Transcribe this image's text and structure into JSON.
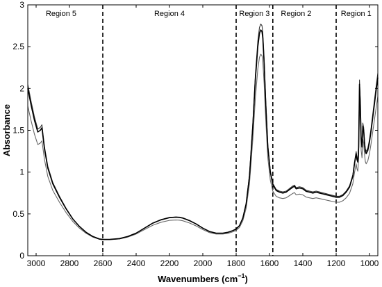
{
  "chart_data": {
    "type": "line",
    "xlabel": "Wavenumbers (cm",
    "xlabel_sup": "−1",
    "xlabel_close": ")",
    "ylabel": "Absorbance",
    "xlim": [
      3050,
      950
    ],
    "ylim": [
      0,
      3
    ],
    "x_reversed": true,
    "x_ticks": [
      3000,
      2800,
      2600,
      2400,
      2200,
      2000,
      1800,
      1600,
      1400,
      1200,
      1000
    ],
    "y_ticks": [
      0,
      0.5,
      1,
      1.5,
      2,
      2.5,
      3
    ],
    "y_tick_labels": [
      "0",
      "0.5",
      "1",
      "1.5",
      "2",
      "2.5",
      "3"
    ],
    "grid": false,
    "region_boundaries": [
      2600,
      1800,
      1580,
      1200
    ],
    "regions": [
      {
        "label": "Region 5",
        "x_center": 2850
      },
      {
        "label": "Region 4",
        "x_center": 2200
      },
      {
        "label": "Region 3",
        "x_center": 1690
      },
      {
        "label": "Region 2",
        "x_center": 1440
      },
      {
        "label": "Region 1",
        "x_center": 1080
      }
    ],
    "series": [
      {
        "x": [
          3050,
          3030,
          3010,
          2990,
          2975,
          2965,
          2950,
          2930,
          2900,
          2860,
          2820,
          2780,
          2740,
          2700,
          2660,
          2620,
          2600,
          2560,
          2500,
          2450,
          2400,
          2350,
          2300,
          2250,
          2200,
          2160,
          2140,
          2120,
          2080,
          2040,
          2000,
          1960,
          1920,
          1880,
          1850,
          1820,
          1800,
          1780,
          1760,
          1740,
          1720,
          1700,
          1685,
          1670,
          1660,
          1652,
          1645,
          1640,
          1632,
          1622,
          1610,
          1595,
          1580,
          1560,
          1540,
          1520,
          1500,
          1480,
          1460,
          1450,
          1440,
          1420,
          1400,
          1380,
          1360,
          1340,
          1320,
          1300,
          1280,
          1260,
          1240,
          1220,
          1200,
          1180,
          1160,
          1140,
          1120,
          1100,
          1090,
          1080,
          1075,
          1070,
          1065,
          1060,
          1055,
          1050,
          1045,
          1040,
          1035,
          1030,
          1025,
          1020,
          1010,
          1000,
          990,
          980,
          970,
          960,
          950
        ],
        "y": [
          2.0,
          1.8,
          1.62,
          1.48,
          1.5,
          1.53,
          1.28,
          1.05,
          0.86,
          0.7,
          0.56,
          0.44,
          0.35,
          0.28,
          0.23,
          0.2,
          0.195,
          0.195,
          0.205,
          0.23,
          0.27,
          0.33,
          0.39,
          0.43,
          0.455,
          0.46,
          0.458,
          0.45,
          0.42,
          0.38,
          0.33,
          0.29,
          0.27,
          0.27,
          0.28,
          0.3,
          0.32,
          0.36,
          0.45,
          0.62,
          0.95,
          1.55,
          2.1,
          2.5,
          2.66,
          2.7,
          2.68,
          2.6,
          2.3,
          1.8,
          1.3,
          1.0,
          0.85,
          0.78,
          0.76,
          0.75,
          0.76,
          0.79,
          0.82,
          0.83,
          0.8,
          0.81,
          0.8,
          0.77,
          0.76,
          0.75,
          0.76,
          0.75,
          0.74,
          0.73,
          0.72,
          0.71,
          0.7,
          0.7,
          0.72,
          0.76,
          0.82,
          0.95,
          1.1,
          1.22,
          1.15,
          1.12,
          1.3,
          2.05,
          1.8,
          1.4,
          1.3,
          1.55,
          1.5,
          1.35,
          1.25,
          1.22,
          1.26,
          1.36,
          1.5,
          1.66,
          1.82,
          1.98,
          2.13
        ]
      }
    ]
  }
}
